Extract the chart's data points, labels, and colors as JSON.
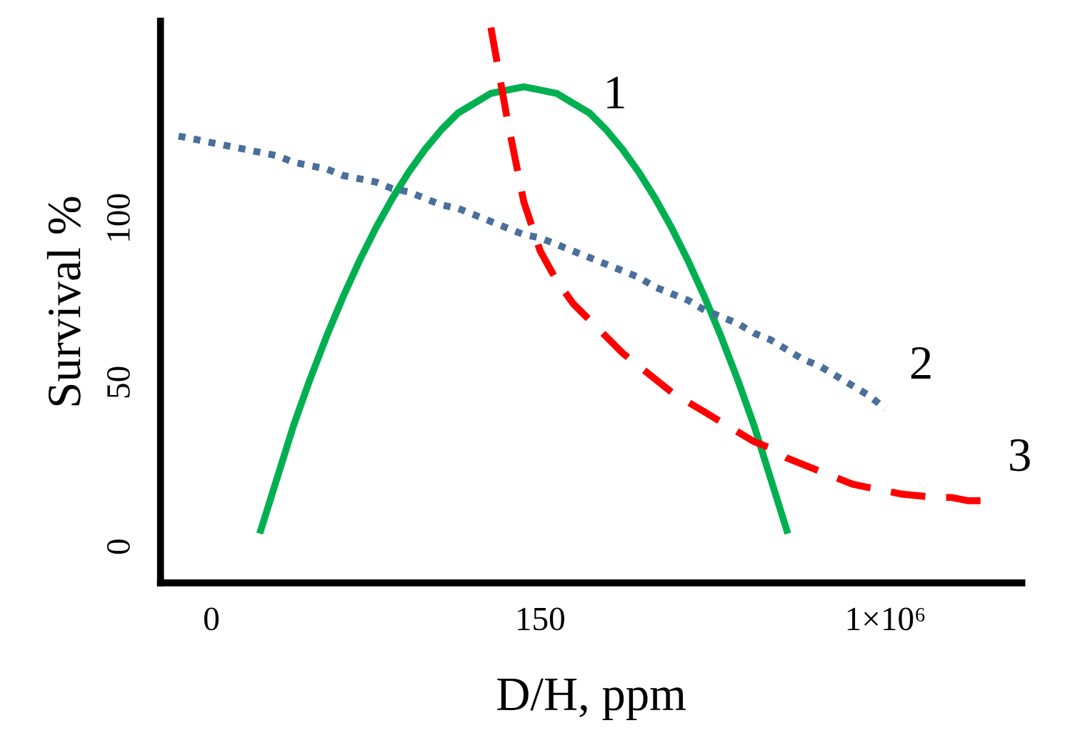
{
  "chart_data": {
    "type": "line",
    "relative": false,
    "xlabel": "D/H, ppm",
    "ylabel": "Survival %",
    "categories": [
      null,
      null,
      "0",
      null,
      null,
      null,
      null,
      null,
      null,
      null,
      null,
      null,
      null,
      null,
      null,
      null,
      null,
      null,
      null,
      null,
      null,
      null,
      "150",
      null,
      null,
      null,
      null,
      null,
      null,
      null,
      null,
      null,
      null,
      null,
      null,
      null,
      null,
      null,
      null,
      null,
      null,
      null,
      null,
      "1×10⁶",
      null,
      null,
      null,
      null,
      null,
      null,
      null
    ],
    "ylim": [
      -11,
      160
    ],
    "yticks": [
      0,
      50,
      100
    ],
    "grid": false,
    "legend": false,
    "series": [
      {
        "name": "1",
        "color": "#00b050",
        "line_style": "solid",
        "values": [
          null,
          null,
          null,
          null,
          null,
          5,
          21,
          37,
          51,
          64,
          76,
          87,
          97,
          106,
          114,
          121,
          127,
          132,
          135,
          138,
          139,
          140,
          139,
          138,
          135,
          132,
          127,
          121,
          114,
          106,
          97,
          87,
          76,
          64,
          51,
          37,
          21,
          5,
          null,
          null,
          null,
          null,
          null,
          null,
          null,
          null,
          null,
          null,
          null,
          null,
          null
        ]
      },
      {
        "name": "2",
        "color": "#4a6f9a",
        "line_style": "dotted",
        "values": [
          125,
          124,
          123,
          122,
          121,
          120,
          119,
          117,
          116,
          115,
          113,
          112,
          111,
          109,
          108,
          106,
          104,
          103,
          101,
          99,
          97,
          95,
          94,
          92,
          90,
          88,
          86,
          84,
          82,
          79,
          77,
          75,
          72,
          70,
          68,
          65,
          63,
          60,
          57,
          55,
          52,
          49,
          46,
          42,
          null,
          null,
          null,
          null,
          null,
          null,
          null
        ]
      },
      {
        "name": "3",
        "color": "#ff0000",
        "line_style": "dashed",
        "values": [
          null,
          null,
          null,
          null,
          null,
          null,
          null,
          null,
          null,
          null,
          null,
          null,
          null,
          null,
          null,
          null,
          null,
          null,
          null,
          158,
          130,
          105,
          90,
          81,
          74,
          69,
          64,
          59,
          55,
          51,
          47,
          44,
          41,
          38,
          35,
          32,
          30,
          27,
          25,
          23,
          21,
          19,
          18,
          17,
          16,
          15.5,
          15,
          15,
          14,
          14,
          null
        ]
      }
    ]
  }
}
